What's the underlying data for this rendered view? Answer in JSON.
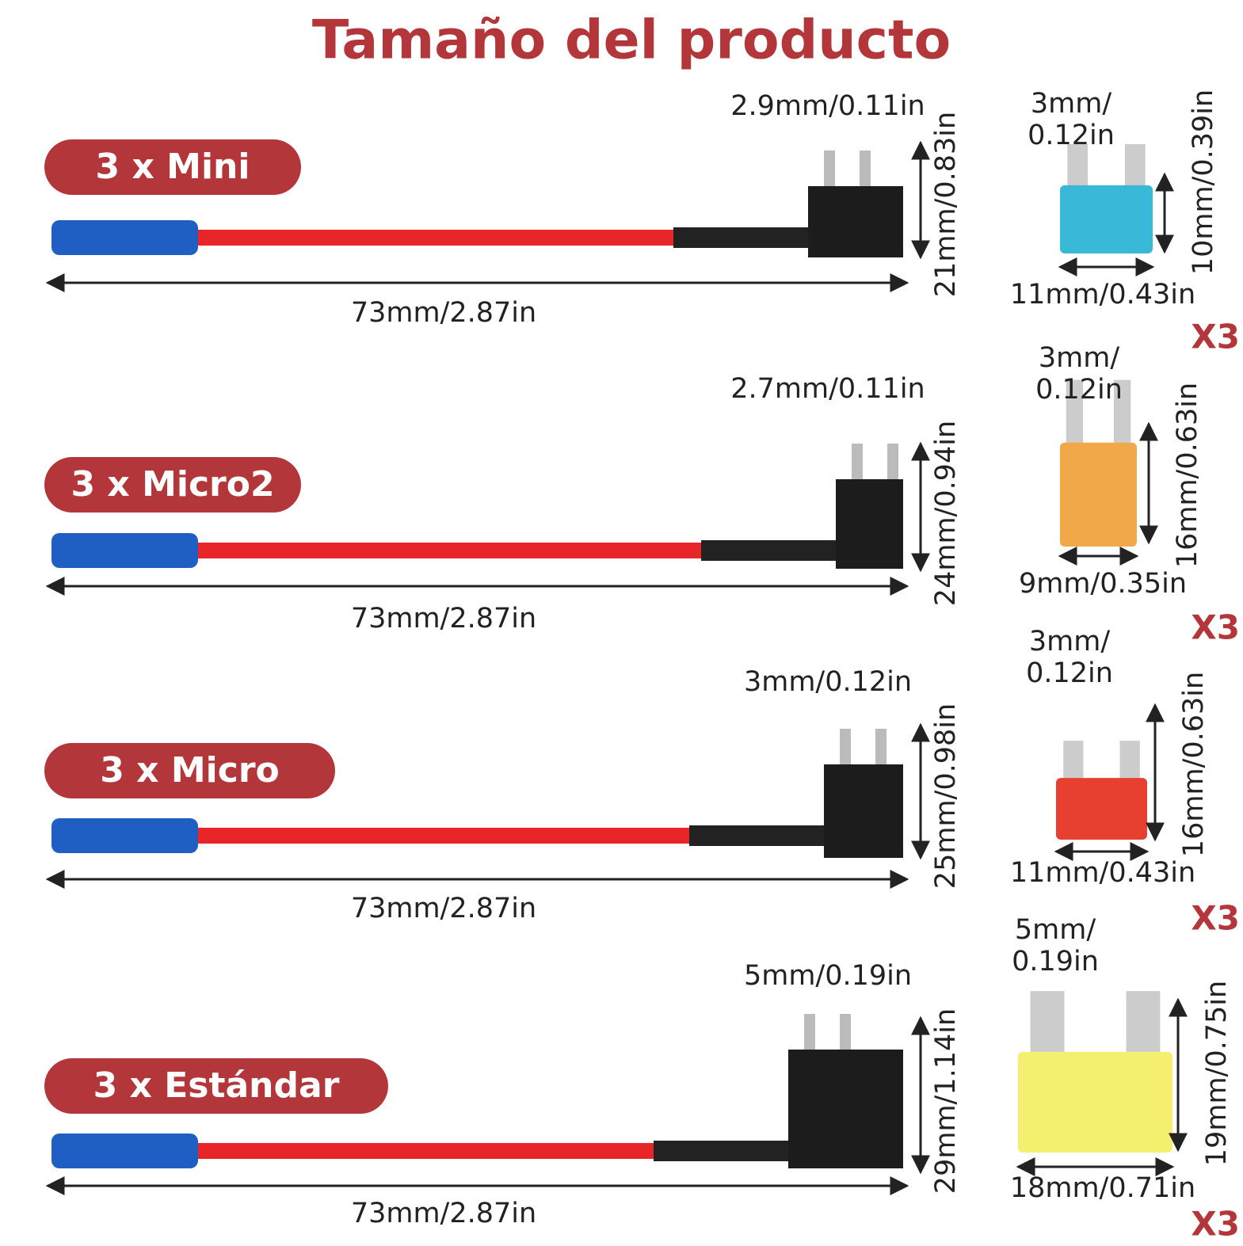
{
  "title": "Tamaño del producto",
  "rows": [
    {
      "label": "3 x Mini",
      "blade": "2.9mm/0.11in",
      "height": "21mm/0.83in",
      "length": "73mm/2.87in",
      "fuse_blade": [
        "3mm/",
        "0.12in"
      ],
      "fuse_height": "10mm/0.39in",
      "fuse_width": "11mm/0.43in",
      "quantity": "X3"
    },
    {
      "label": "3 x Micro2",
      "blade": "2.7mm/0.11in",
      "height": "24mm/0.94in",
      "length": "73mm/2.87in",
      "fuse_blade": [
        "3mm/",
        "0.12in"
      ],
      "fuse_height": "16mm/0.63in",
      "fuse_width": "9mm/0.35in",
      "quantity": "X3"
    },
    {
      "label": "3 x Micro",
      "blade": "3mm/0.12in",
      "height": "25mm/0.98in",
      "length": "73mm/2.87in",
      "fuse_blade": [
        "3mm/",
        "0.12in"
      ],
      "fuse_height": "16mm/0.63in",
      "fuse_width": "11mm/0.43in",
      "quantity": "X3"
    },
    {
      "label": "3 x Estándar",
      "blade": "5mm/0.19in",
      "height": "29mm/1.14in",
      "length": "73mm/2.87in",
      "fuse_blade": [
        "5mm/",
        "0.19in"
      ],
      "fuse_height": "19mm/0.75in",
      "fuse_width": "18mm/0.71in",
      "quantity": "X3"
    }
  ]
}
